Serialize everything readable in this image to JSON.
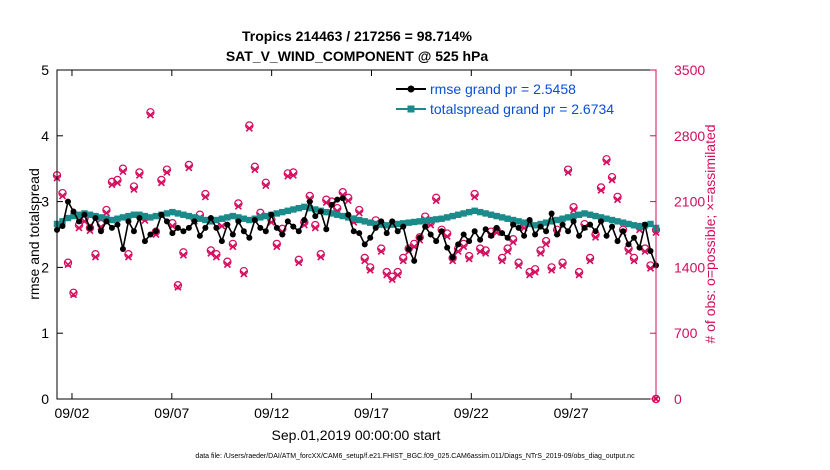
{
  "chart_data": {
    "type": "line",
    "title_line1": "Tropics 214463 / 217256 = 98.714%",
    "title_line2": "SAT_V_WIND_COMPONENT @ 525 hPa",
    "xlabel": "Sep.01,2019 00:00:00 start",
    "ylabel_left": "rmse and totalspread",
    "ylabel_right": "# of obs: o=possible; ×=assimilated",
    "x_tick_labels": [
      "09/02",
      "09/07",
      "09/12",
      "09/17",
      "09/22",
      "09/27"
    ],
    "x_tick_days": [
      1.5,
      6.5,
      11.5,
      16.5,
      21.5,
      26.5
    ],
    "xlim": [
      0.75,
      30.75
    ],
    "ylim_left": [
      0,
      5
    ],
    "y_ticks_left": [
      "0",
      "1",
      "2",
      "3",
      "4",
      "5"
    ],
    "ylim_right": [
      0,
      3500
    ],
    "y_ticks_right": [
      "0",
      "700",
      "1400",
      "2100",
      "2800",
      "3500"
    ],
    "footer": "data file: /Users/raeder/DAI/ATM_forcXX/CAM6_setup/f.e21.FHIST_BGC.f09_025.CAM6assim.011/Diags_NTrS_2019-09/obs_diag_output.nc",
    "colors": {
      "rmse": "#000000",
      "spread": "#1b8a8a",
      "obs": "#d40c5e",
      "legend_text": "#0a4dd8"
    },
    "series": [
      {
        "name": "rmse grand pr = 2.5458",
        "marker": "circle",
        "values": [
          2.57,
          2.63,
          3.0,
          2.85,
          2.7,
          2.8,
          2.6,
          2.75,
          2.55,
          2.7,
          2.6,
          2.65,
          2.28,
          2.7,
          2.55,
          2.75,
          2.4,
          2.5,
          2.55,
          2.8,
          2.7,
          2.52,
          2.6,
          2.55,
          2.6,
          2.7,
          2.48,
          2.6,
          2.75,
          2.6,
          2.4,
          2.65,
          2.5,
          2.7,
          2.55,
          2.45,
          2.72,
          2.6,
          2.55,
          2.8,
          2.6,
          2.5,
          2.7,
          2.62,
          2.55,
          2.72,
          3.0,
          2.78,
          2.85,
          2.58,
          2.95,
          3.03,
          3.05,
          2.8,
          2.55,
          2.52,
          2.35,
          2.45,
          2.6,
          2.7,
          2.52,
          2.7,
          2.55,
          2.62,
          2.28,
          2.1,
          2.45,
          2.62,
          2.5,
          2.4,
          2.55,
          2.3,
          2.15,
          2.35,
          2.5,
          2.4,
          2.55,
          2.42,
          2.58,
          2.48,
          2.6,
          2.52,
          2.45,
          2.65,
          2.6,
          2.48,
          2.72,
          2.5,
          2.62,
          2.55,
          2.82,
          2.5,
          2.65,
          2.55,
          2.7,
          2.48,
          2.6,
          2.65,
          2.55,
          2.7,
          2.48,
          2.62,
          2.4,
          2.55,
          2.35,
          2.45,
          2.3,
          2.65,
          2.25,
          2.03
        ]
      },
      {
        "name": "totalspread grand pr = 2.6734",
        "marker": "square",
        "values": [
          2.66,
          2.7,
          2.75,
          2.78,
          2.8,
          2.82,
          2.8,
          2.78,
          2.76,
          2.74,
          2.72,
          2.74,
          2.76,
          2.78,
          2.8,
          2.8,
          2.78,
          2.76,
          2.78,
          2.8,
          2.82,
          2.84,
          2.82,
          2.8,
          2.78,
          2.76,
          2.74,
          2.72,
          2.7,
          2.72,
          2.74,
          2.76,
          2.78,
          2.76,
          2.74,
          2.72,
          2.74,
          2.76,
          2.78,
          2.8,
          2.82,
          2.84,
          2.86,
          2.88,
          2.9,
          2.92,
          2.9,
          2.88,
          2.86,
          2.84,
          2.82,
          2.8,
          2.78,
          2.76,
          2.74,
          2.72,
          2.7,
          2.68,
          2.66,
          2.65,
          2.64,
          2.65,
          2.66,
          2.67,
          2.68,
          2.69,
          2.7,
          2.71,
          2.72,
          2.73,
          2.74,
          2.76,
          2.78,
          2.8,
          2.82,
          2.84,
          2.86,
          2.84,
          2.82,
          2.8,
          2.78,
          2.76,
          2.74,
          2.72,
          2.7,
          2.68,
          2.66,
          2.64,
          2.66,
          2.68,
          2.7,
          2.72,
          2.74,
          2.76,
          2.78,
          2.8,
          2.82,
          2.8,
          2.78,
          2.76,
          2.74,
          2.72,
          2.7,
          2.68,
          2.66,
          2.64,
          2.62,
          2.64,
          2.66,
          2.6
        ]
      },
      {
        "name": "obs possible",
        "marker": "circle-open",
        "values": [
          2380,
          2190,
          1450,
          1130,
          1850,
          1920,
          1820,
          1540,
          1860,
          2010,
          2310,
          2330,
          2450,
          1540,
          2260,
          2410,
          1930,
          3050,
          1780,
          2330,
          2440,
          1870,
          1210,
          1560,
          2490,
          1920,
          1960,
          2180,
          1580,
          1540,
          1870,
          1460,
          1650,
          2080,
          1360,
          2910,
          2470,
          1980,
          2300,
          1910,
          1650,
          1810,
          2400,
          2410,
          1480,
          1880,
          2160,
          1850,
          1540,
          2120,
          2100,
          2030,
          2200,
          2140,
          1910,
          2010,
          1500,
          1400,
          1900,
          1600,
          1350,
          1300,
          1350,
          1500,
          1600,
          1650,
          1720,
          1940,
          1880,
          2140,
          1800,
          1760,
          1500,
          1600,
          1650,
          1520,
          2180,
          1600,
          1580,
          1780,
          1800,
          1500,
          1600,
          1700,
          1450,
          1850,
          1350,
          1380,
          1580,
          1680,
          1400,
          1800,
          1450,
          2440,
          2040,
          1350,
          1860,
          1500,
          1750,
          2250,
          2550,
          2360,
          2150,
          1800,
          1600,
          1500,
          1830,
          1600,
          1420,
          1800
        ]
      },
      {
        "name": "obs assimilated",
        "marker": "cross",
        "values": [
          2350,
          2160,
          1430,
          1110,
          1820,
          1890,
          1790,
          1510,
          1830,
          1980,
          2280,
          2300,
          2420,
          1510,
          2230,
          2380,
          1900,
          3020,
          1750,
          2300,
          2410,
          1840,
          1190,
          1530,
          2460,
          1890,
          1930,
          2150,
          1550,
          1510,
          1840,
          1430,
          1620,
          2050,
          1330,
          2880,
          2440,
          1950,
          2270,
          1880,
          1620,
          1780,
          2370,
          2380,
          1450,
          1850,
          2130,
          1820,
          1510,
          2090,
          2070,
          2000,
          2170,
          2110,
          1880,
          1980,
          1470,
          1370,
          1870,
          1570,
          1320,
          1270,
          1320,
          1470,
          1570,
          1620,
          1690,
          1910,
          1850,
          2110,
          1770,
          1730,
          1470,
          1570,
          1620,
          1490,
          2150,
          1570,
          1550,
          1750,
          1770,
          1470,
          1570,
          1670,
          1420,
          1820,
          1320,
          1350,
          1550,
          1650,
          1370,
          1770,
          1420,
          2410,
          2010,
          1320,
          1830,
          1470,
          1720,
          2220,
          2520,
          2330,
          2120,
          1770,
          1570,
          1470,
          1800,
          1570,
          1390,
          1770
        ]
      }
    ]
  }
}
